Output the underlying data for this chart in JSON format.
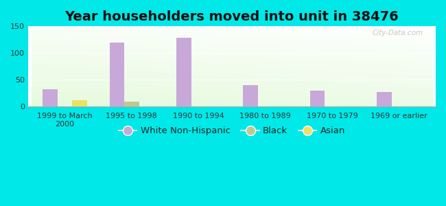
{
  "title": "Year householders moved into unit in 38476",
  "categories": [
    "1999 to March\n2000",
    "1995 to 1998",
    "1990 to 1994",
    "1980 to 1989",
    "1970 to 1979",
    "1969 or earlier"
  ],
  "white_non_hispanic": [
    33,
    120,
    129,
    40,
    30,
    27
  ],
  "black": [
    0,
    10,
    0,
    0,
    0,
    0
  ],
  "asian": [
    12,
    0,
    0,
    0,
    0,
    0
  ],
  "white_color": "#c8a8d8",
  "black_color": "#c0c890",
  "asian_color": "#f0e060",
  "bg_color": "#00e8e8",
  "ylim": [
    0,
    150
  ],
  "yticks": [
    0,
    50,
    100,
    150
  ],
  "bar_width": 0.22,
  "title_fontsize": 14,
  "tick_fontsize": 8,
  "legend_fontsize": 9.5
}
